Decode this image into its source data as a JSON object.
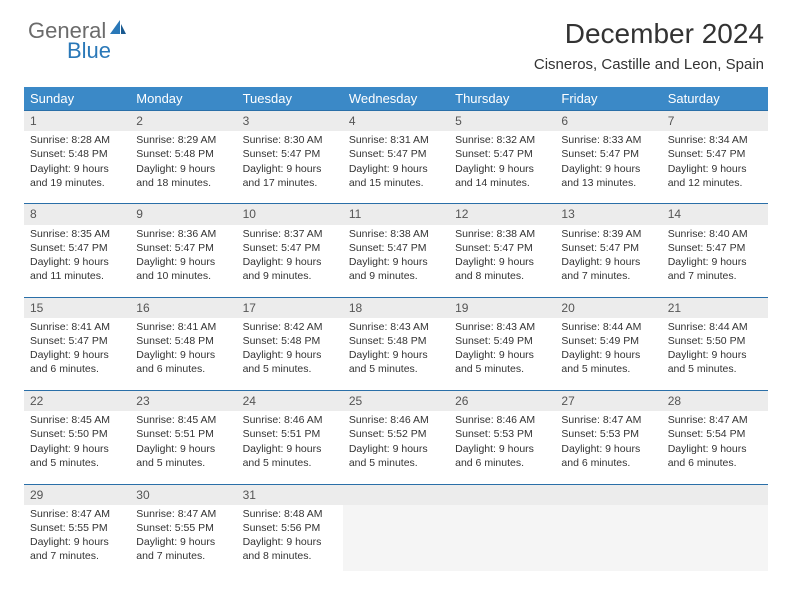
{
  "logo": {
    "line1": "General",
    "line2": "Blue"
  },
  "title": "December 2024",
  "location": "Cisneros, Castille and Leon, Spain",
  "colors": {
    "header_bg": "#3b89c7",
    "header_text": "#ffffff",
    "daynum_bg": "#ececec",
    "rule": "#2a6fa8",
    "text": "#333333",
    "logo_gray": "#6b6b6b",
    "logo_blue": "#2a78b8",
    "background": "#ffffff"
  },
  "typography": {
    "title_fontsize": 28,
    "location_fontsize": 15,
    "day_header_fontsize": 13,
    "cell_fontsize": 10.5
  },
  "day_headers": [
    "Sunday",
    "Monday",
    "Tuesday",
    "Wednesday",
    "Thursday",
    "Friday",
    "Saturday"
  ],
  "weeks": [
    [
      {
        "n": "1",
        "sr": "Sunrise: 8:28 AM",
        "ss": "Sunset: 5:48 PM",
        "d1": "Daylight: 9 hours",
        "d2": "and 19 minutes."
      },
      {
        "n": "2",
        "sr": "Sunrise: 8:29 AM",
        "ss": "Sunset: 5:48 PM",
        "d1": "Daylight: 9 hours",
        "d2": "and 18 minutes."
      },
      {
        "n": "3",
        "sr": "Sunrise: 8:30 AM",
        "ss": "Sunset: 5:47 PM",
        "d1": "Daylight: 9 hours",
        "d2": "and 17 minutes."
      },
      {
        "n": "4",
        "sr": "Sunrise: 8:31 AM",
        "ss": "Sunset: 5:47 PM",
        "d1": "Daylight: 9 hours",
        "d2": "and 15 minutes."
      },
      {
        "n": "5",
        "sr": "Sunrise: 8:32 AM",
        "ss": "Sunset: 5:47 PM",
        "d1": "Daylight: 9 hours",
        "d2": "and 14 minutes."
      },
      {
        "n": "6",
        "sr": "Sunrise: 8:33 AM",
        "ss": "Sunset: 5:47 PM",
        "d1": "Daylight: 9 hours",
        "d2": "and 13 minutes."
      },
      {
        "n": "7",
        "sr": "Sunrise: 8:34 AM",
        "ss": "Sunset: 5:47 PM",
        "d1": "Daylight: 9 hours",
        "d2": "and 12 minutes."
      }
    ],
    [
      {
        "n": "8",
        "sr": "Sunrise: 8:35 AM",
        "ss": "Sunset: 5:47 PM",
        "d1": "Daylight: 9 hours",
        "d2": "and 11 minutes."
      },
      {
        "n": "9",
        "sr": "Sunrise: 8:36 AM",
        "ss": "Sunset: 5:47 PM",
        "d1": "Daylight: 9 hours",
        "d2": "and 10 minutes."
      },
      {
        "n": "10",
        "sr": "Sunrise: 8:37 AM",
        "ss": "Sunset: 5:47 PM",
        "d1": "Daylight: 9 hours",
        "d2": "and 9 minutes."
      },
      {
        "n": "11",
        "sr": "Sunrise: 8:38 AM",
        "ss": "Sunset: 5:47 PM",
        "d1": "Daylight: 9 hours",
        "d2": "and 9 minutes."
      },
      {
        "n": "12",
        "sr": "Sunrise: 8:38 AM",
        "ss": "Sunset: 5:47 PM",
        "d1": "Daylight: 9 hours",
        "d2": "and 8 minutes."
      },
      {
        "n": "13",
        "sr": "Sunrise: 8:39 AM",
        "ss": "Sunset: 5:47 PM",
        "d1": "Daylight: 9 hours",
        "d2": "and 7 minutes."
      },
      {
        "n": "14",
        "sr": "Sunrise: 8:40 AM",
        "ss": "Sunset: 5:47 PM",
        "d1": "Daylight: 9 hours",
        "d2": "and 7 minutes."
      }
    ],
    [
      {
        "n": "15",
        "sr": "Sunrise: 8:41 AM",
        "ss": "Sunset: 5:47 PM",
        "d1": "Daylight: 9 hours",
        "d2": "and 6 minutes."
      },
      {
        "n": "16",
        "sr": "Sunrise: 8:41 AM",
        "ss": "Sunset: 5:48 PM",
        "d1": "Daylight: 9 hours",
        "d2": "and 6 minutes."
      },
      {
        "n": "17",
        "sr": "Sunrise: 8:42 AM",
        "ss": "Sunset: 5:48 PM",
        "d1": "Daylight: 9 hours",
        "d2": "and 5 minutes."
      },
      {
        "n": "18",
        "sr": "Sunrise: 8:43 AM",
        "ss": "Sunset: 5:48 PM",
        "d1": "Daylight: 9 hours",
        "d2": "and 5 minutes."
      },
      {
        "n": "19",
        "sr": "Sunrise: 8:43 AM",
        "ss": "Sunset: 5:49 PM",
        "d1": "Daylight: 9 hours",
        "d2": "and 5 minutes."
      },
      {
        "n": "20",
        "sr": "Sunrise: 8:44 AM",
        "ss": "Sunset: 5:49 PM",
        "d1": "Daylight: 9 hours",
        "d2": "and 5 minutes."
      },
      {
        "n": "21",
        "sr": "Sunrise: 8:44 AM",
        "ss": "Sunset: 5:50 PM",
        "d1": "Daylight: 9 hours",
        "d2": "and 5 minutes."
      }
    ],
    [
      {
        "n": "22",
        "sr": "Sunrise: 8:45 AM",
        "ss": "Sunset: 5:50 PM",
        "d1": "Daylight: 9 hours",
        "d2": "and 5 minutes."
      },
      {
        "n": "23",
        "sr": "Sunrise: 8:45 AM",
        "ss": "Sunset: 5:51 PM",
        "d1": "Daylight: 9 hours",
        "d2": "and 5 minutes."
      },
      {
        "n": "24",
        "sr": "Sunrise: 8:46 AM",
        "ss": "Sunset: 5:51 PM",
        "d1": "Daylight: 9 hours",
        "d2": "and 5 minutes."
      },
      {
        "n": "25",
        "sr": "Sunrise: 8:46 AM",
        "ss": "Sunset: 5:52 PM",
        "d1": "Daylight: 9 hours",
        "d2": "and 5 minutes."
      },
      {
        "n": "26",
        "sr": "Sunrise: 8:46 AM",
        "ss": "Sunset: 5:53 PM",
        "d1": "Daylight: 9 hours",
        "d2": "and 6 minutes."
      },
      {
        "n": "27",
        "sr": "Sunrise: 8:47 AM",
        "ss": "Sunset: 5:53 PM",
        "d1": "Daylight: 9 hours",
        "d2": "and 6 minutes."
      },
      {
        "n": "28",
        "sr": "Sunrise: 8:47 AM",
        "ss": "Sunset: 5:54 PM",
        "d1": "Daylight: 9 hours",
        "d2": "and 6 minutes."
      }
    ],
    [
      {
        "n": "29",
        "sr": "Sunrise: 8:47 AM",
        "ss": "Sunset: 5:55 PM",
        "d1": "Daylight: 9 hours",
        "d2": "and 7 minutes."
      },
      {
        "n": "30",
        "sr": "Sunrise: 8:47 AM",
        "ss": "Sunset: 5:55 PM",
        "d1": "Daylight: 9 hours",
        "d2": "and 7 minutes."
      },
      {
        "n": "31",
        "sr": "Sunrise: 8:48 AM",
        "ss": "Sunset: 5:56 PM",
        "d1": "Daylight: 9 hours",
        "d2": "and 8 minutes."
      },
      {
        "empty": true
      },
      {
        "empty": true
      },
      {
        "empty": true
      },
      {
        "empty": true
      }
    ]
  ]
}
